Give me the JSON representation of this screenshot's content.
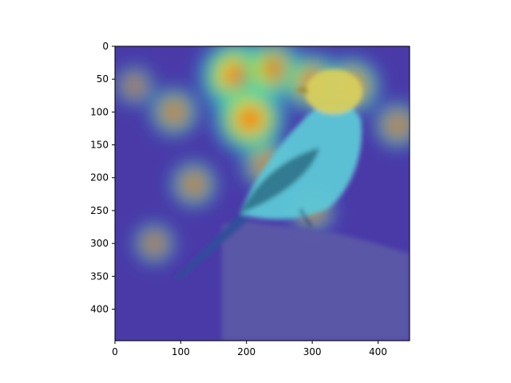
{
  "chart_data": {
    "type": "heatmap",
    "description_kind": "image-with-overlay",
    "title": "",
    "xlabel": "",
    "ylabel": "",
    "xlim": [
      0,
      448
    ],
    "ylim": [
      448,
      0
    ],
    "x_ticks": [
      0,
      100,
      200,
      300,
      400
    ],
    "y_ticks": [
      0,
      50,
      100,
      150,
      200,
      250,
      300,
      350,
      400
    ],
    "grid": false,
    "colormap": "jet",
    "overlay_alpha": 0.45,
    "heat_spots": [
      {
        "x": 185,
        "y": 45,
        "intensity": 1.0
      },
      {
        "x": 205,
        "y": 110,
        "intensity": 0.95
      },
      {
        "x": 240,
        "y": 35,
        "intensity": 0.75
      },
      {
        "x": 300,
        "y": 55,
        "intensity": 0.7
      },
      {
        "x": 360,
        "y": 60,
        "intensity": 0.65
      },
      {
        "x": 430,
        "y": 120,
        "intensity": 0.45
      },
      {
        "x": 90,
        "y": 100,
        "intensity": 0.5
      },
      {
        "x": 230,
        "y": 180,
        "intensity": 0.5
      },
      {
        "x": 120,
        "y": 210,
        "intensity": 0.45
      },
      {
        "x": 30,
        "y": 60,
        "intensity": 0.3
      },
      {
        "x": 60,
        "y": 300,
        "intensity": 0.35
      },
      {
        "x": 300,
        "y": 250,
        "intensity": 0.4
      }
    ],
    "colors": {
      "background_low": "#3b2a9c",
      "post": "#5a5a9a",
      "bird_body": "#58c8d8",
      "bird_head": "#d8d060",
      "bird_wing": "#2a6a80"
    }
  }
}
